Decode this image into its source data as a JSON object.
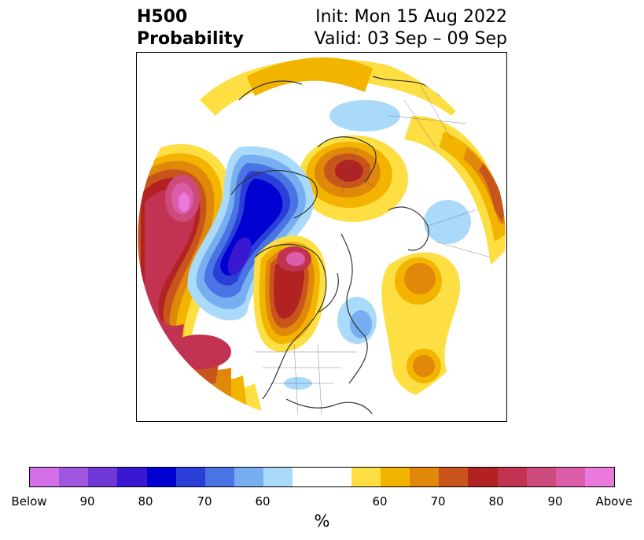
{
  "title": {
    "left_line1": "H500",
    "left_line2": "Probability",
    "right_line1": "Init: Mon 15 Aug 2022",
    "right_line2": "Valid: 03 Sep – 09 Sep"
  },
  "colorbar": {
    "label": "%",
    "colors": [
      "#d46ee6",
      "#9e56e0",
      "#6f38d6",
      "#3a17d1",
      "#0000d0",
      "#2a3fd8",
      "#4a73e3",
      "#76aef0",
      "#aadaf9",
      "#ffffff",
      "#ffffff",
      "#fddf43",
      "#f3b400",
      "#e0880a",
      "#c8551b",
      "#b22222",
      "#c13350",
      "#cc4b7c",
      "#dd5ea8",
      "#ea79dd"
    ],
    "tick_labels": [
      "Below",
      "90",
      "80",
      "70",
      "60",
      "60",
      "70",
      "80",
      "90",
      "Above"
    ]
  },
  "map": {
    "projection": "north-polar-stereographic",
    "regions": [
      {
        "name": "north-pacific-above-anomaly",
        "category": "Above",
        "max_percent": "90+"
      },
      {
        "name": "alaska-below-anomaly",
        "category": "Below",
        "max_percent": "90"
      },
      {
        "name": "western-canada-above-anomaly",
        "category": "Above",
        "max_percent": "90+"
      },
      {
        "name": "scandinavia-above-anomaly",
        "category": "Above",
        "max_percent": "80"
      },
      {
        "name": "north-atlantic-above-anomaly",
        "category": "Above",
        "max_percent": "70"
      }
    ]
  }
}
